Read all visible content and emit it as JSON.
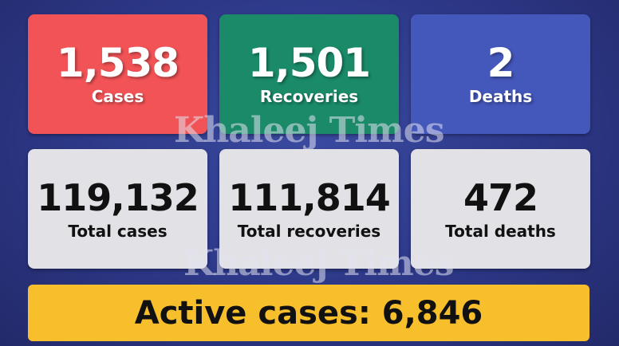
{
  "daily": {
    "cases": {
      "value": "1,538",
      "label": "Cases",
      "color": "#f25356"
    },
    "recoveries": {
      "value": "1,501",
      "label": "Recoveries",
      "color": "#1a8a69"
    },
    "deaths": {
      "value": "2",
      "label": "Deaths",
      "color": "#4457bb"
    }
  },
  "totals": {
    "cases": {
      "value": "119,132",
      "label": "Total cases"
    },
    "recoveries": {
      "value": "111,814",
      "label": "Total recoveries"
    },
    "deaths": {
      "value": "472",
      "label": "Total deaths"
    }
  },
  "active": {
    "text": "Active cases: 6,846",
    "color": "#f7bf2c"
  },
  "watermark": "Khaleej Times"
}
